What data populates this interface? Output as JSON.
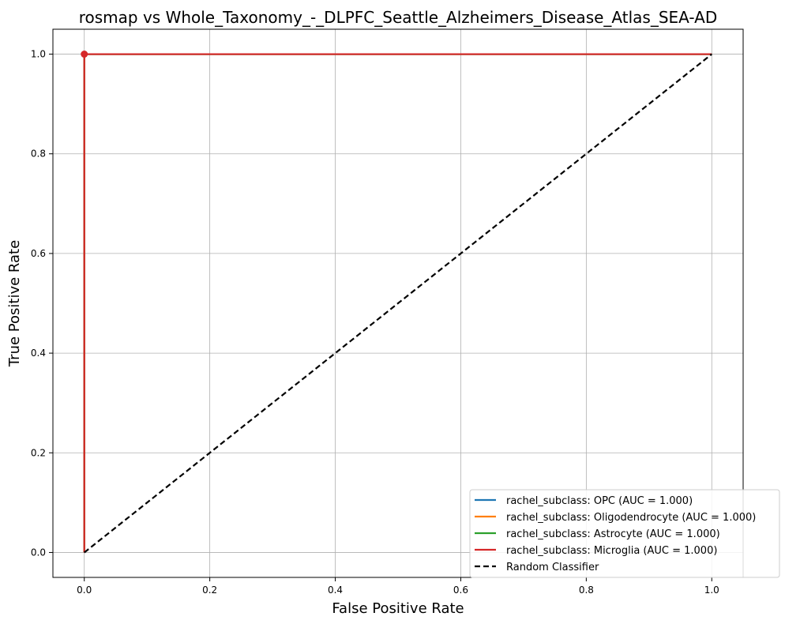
{
  "chart_data": {
    "type": "line",
    "title": "rosmap vs Whole_Taxonomy_-_DLPFC_Seattle_Alzheimers_Disease_Atlas_SEA-AD",
    "xlabel": "False Positive Rate",
    "ylabel": "True Positive Rate",
    "xlim": [
      -0.05,
      1.05
    ],
    "ylim": [
      -0.05,
      1.05
    ],
    "xticks": [
      0.0,
      0.2,
      0.4,
      0.6,
      0.8,
      1.0
    ],
    "yticks": [
      0.0,
      0.2,
      0.4,
      0.6,
      0.8,
      1.0
    ],
    "xtick_labels": [
      "0.0",
      "0.2",
      "0.4",
      "0.6",
      "0.8",
      "1.0"
    ],
    "ytick_labels": [
      "0.0",
      "0.2",
      "0.4",
      "0.6",
      "0.8",
      "1.0"
    ],
    "grid": true,
    "legend_position": "lower-right",
    "series": [
      {
        "name": "rachel_subclass: OPC (AUC = 1.000)",
        "color": "#1f77b4",
        "x": [
          0.0,
          0.0,
          1.0
        ],
        "y": [
          0.0,
          1.0,
          1.0
        ]
      },
      {
        "name": "rachel_subclass: Oligodendrocyte (AUC = 1.000)",
        "color": "#ff7f0e",
        "x": [
          0.0,
          0.0,
          1.0
        ],
        "y": [
          0.0,
          1.0,
          1.0
        ]
      },
      {
        "name": "rachel_subclass: Astrocyte (AUC = 1.000)",
        "color": "#2ca02c",
        "x": [
          0.0,
          0.0,
          1.0
        ],
        "y": [
          0.0,
          1.0,
          1.0
        ]
      },
      {
        "name": "rachel_subclass: Microglia (AUC = 1.000)",
        "color": "#d62728",
        "x": [
          0.0,
          0.0,
          1.0
        ],
        "y": [
          0.0,
          1.0,
          1.0
        ]
      }
    ],
    "reference_line": {
      "name": "Random Classifier",
      "color": "#000000",
      "dashed": true,
      "x": [
        0.0,
        1.0
      ],
      "y": [
        0.0,
        1.0
      ]
    },
    "markers": [
      {
        "x": 0.0,
        "y": 1.0,
        "color": "#d62728"
      }
    ]
  }
}
